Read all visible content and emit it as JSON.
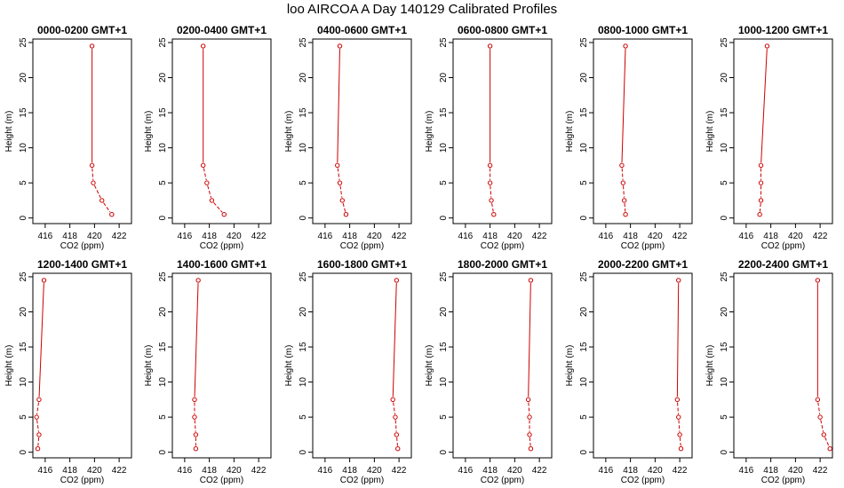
{
  "title": "loo AIRCOA A  Day 140129  Calibrated Profiles",
  "colors": {
    "series": "#cc0000",
    "axis": "#000000"
  },
  "chart_data": [
    {
      "type": "line",
      "title": "0000-0200 GMT+1",
      "xlabel": "CO2 (ppm)",
      "ylabel": "Height (m)",
      "xlim": [
        415,
        423
      ],
      "ylim": [
        -0.8,
        25.5
      ],
      "xticks": [
        416,
        418,
        420,
        422
      ],
      "yticks": [
        0,
        5,
        10,
        15,
        20,
        25
      ],
      "x": [
        419.8,
        419.8,
        419.9,
        420.6,
        421.4
      ],
      "y": [
        24.5,
        7.5,
        5.0,
        2.5,
        0.5
      ]
    },
    {
      "type": "line",
      "title": "0200-0400 GMT+1",
      "xlabel": "CO2 (ppm)",
      "ylabel": "Height (m)",
      "xlim": [
        415,
        423
      ],
      "ylim": [
        -0.8,
        25.5
      ],
      "xticks": [
        416,
        418,
        420,
        422
      ],
      "yticks": [
        0,
        5,
        10,
        15,
        20,
        25
      ],
      "x": [
        417.5,
        417.5,
        417.8,
        418.2,
        419.2
      ],
      "y": [
        24.5,
        7.5,
        5.0,
        2.5,
        0.5
      ]
    },
    {
      "type": "line",
      "title": "0400-0600 GMT+1",
      "xlabel": "CO2 (ppm)",
      "ylabel": "Height (m)",
      "xlim": [
        415,
        423
      ],
      "ylim": [
        -0.8,
        25.5
      ],
      "xticks": [
        416,
        418,
        420,
        422
      ],
      "yticks": [
        0,
        5,
        10,
        15,
        20,
        25
      ],
      "x": [
        417.2,
        417.0,
        417.2,
        417.4,
        417.7
      ],
      "y": [
        24.5,
        7.5,
        5.0,
        2.5,
        0.5
      ]
    },
    {
      "type": "line",
      "title": "0600-0800 GMT+1",
      "xlabel": "CO2 (ppm)",
      "ylabel": "Height (m)",
      "xlim": [
        415,
        423
      ],
      "ylim": [
        -0.8,
        25.5
      ],
      "xticks": [
        416,
        418,
        420,
        422
      ],
      "yticks": [
        0,
        5,
        10,
        15,
        20,
        25
      ],
      "x": [
        418.0,
        418.0,
        418.0,
        418.1,
        418.3
      ],
      "y": [
        24.5,
        7.5,
        5.0,
        2.5,
        0.5
      ]
    },
    {
      "type": "line",
      "title": "0800-1000 GMT+1",
      "xlabel": "CO2 (ppm)",
      "ylabel": "Height (m)",
      "xlim": [
        415,
        423
      ],
      "ylim": [
        -0.8,
        25.5
      ],
      "xticks": [
        416,
        418,
        420,
        422
      ],
      "yticks": [
        0,
        5,
        10,
        15,
        20,
        25
      ],
      "x": [
        417.6,
        417.3,
        417.4,
        417.5,
        417.6
      ],
      "y": [
        24.5,
        7.5,
        5.0,
        2.5,
        0.5
      ]
    },
    {
      "type": "line",
      "title": "1000-1200 GMT+1",
      "xlabel": "CO2 (ppm)",
      "ylabel": "Height (m)",
      "xlim": [
        415,
        423
      ],
      "ylim": [
        -0.8,
        25.5
      ],
      "xticks": [
        416,
        418,
        420,
        422
      ],
      "yticks": [
        0,
        5,
        10,
        15,
        20,
        25
      ],
      "x": [
        417.7,
        417.2,
        417.2,
        417.2,
        417.1
      ],
      "y": [
        24.5,
        7.5,
        5.0,
        2.5,
        0.5
      ]
    },
    {
      "type": "line",
      "title": "1200-1400 GMT+1",
      "xlabel": "CO2 (ppm)",
      "ylabel": "Height (m)",
      "xlim": [
        415,
        423
      ],
      "ylim": [
        -0.8,
        25.5
      ],
      "xticks": [
        416,
        418,
        420,
        422
      ],
      "yticks": [
        0,
        5,
        10,
        15,
        20,
        25
      ],
      "x": [
        415.9,
        415.5,
        415.3,
        415.5,
        415.4
      ],
      "y": [
        24.5,
        7.5,
        5.0,
        2.5,
        0.5
      ]
    },
    {
      "type": "line",
      "title": "1400-1600 GMT+1",
      "xlabel": "CO2 (ppm)",
      "ylabel": "Height (m)",
      "xlim": [
        415,
        423
      ],
      "ylim": [
        -0.8,
        25.5
      ],
      "xticks": [
        416,
        418,
        420,
        422
      ],
      "yticks": [
        0,
        5,
        10,
        15,
        20,
        25
      ],
      "x": [
        417.1,
        416.8,
        416.8,
        416.9,
        416.9
      ],
      "y": [
        24.5,
        7.5,
        5.0,
        2.5,
        0.5
      ]
    },
    {
      "type": "line",
      "title": "1600-1800 GMT+1",
      "xlabel": "CO2 (ppm)",
      "ylabel": "Height (m)",
      "xlim": [
        415,
        423
      ],
      "ylim": [
        -0.8,
        25.5
      ],
      "xticks": [
        416,
        418,
        420,
        422
      ],
      "yticks": [
        0,
        5,
        10,
        15,
        20,
        25
      ],
      "x": [
        421.8,
        421.5,
        421.7,
        421.8,
        421.9
      ],
      "y": [
        24.5,
        7.5,
        5.0,
        2.5,
        0.5
      ]
    },
    {
      "type": "line",
      "title": "1800-2000 GMT+1",
      "xlabel": "CO2 (ppm)",
      "ylabel": "Height (m)",
      "xlim": [
        415,
        423
      ],
      "ylim": [
        -0.8,
        25.5
      ],
      "xticks": [
        416,
        418,
        420,
        422
      ],
      "yticks": [
        0,
        5,
        10,
        15,
        20,
        25
      ],
      "x": [
        421.3,
        421.1,
        421.2,
        421.2,
        421.3
      ],
      "y": [
        24.5,
        7.5,
        5.0,
        2.5,
        0.5
      ]
    },
    {
      "type": "line",
      "title": "2000-2200 GMT+1",
      "xlabel": "CO2 (ppm)",
      "ylabel": "Height (m)",
      "xlim": [
        415,
        423
      ],
      "ylim": [
        -0.8,
        25.5
      ],
      "xticks": [
        416,
        418,
        420,
        422
      ],
      "yticks": [
        0,
        5,
        10,
        15,
        20,
        25
      ],
      "x": [
        421.9,
        421.8,
        421.9,
        422.0,
        422.1
      ],
      "y": [
        24.5,
        7.5,
        5.0,
        2.5,
        0.5
      ]
    },
    {
      "type": "line",
      "title": "2200-2400 GMT+1",
      "xlabel": "CO2 (ppm)",
      "ylabel": "Height (m)",
      "xlim": [
        415,
        423
      ],
      "ylim": [
        -0.8,
        25.5
      ],
      "xticks": [
        416,
        418,
        420,
        422
      ],
      "yticks": [
        0,
        5,
        10,
        15,
        20,
        25
      ],
      "x": [
        421.8,
        421.8,
        422.0,
        422.3,
        422.8
      ],
      "y": [
        24.5,
        7.5,
        5.0,
        2.5,
        0.5
      ]
    }
  ]
}
